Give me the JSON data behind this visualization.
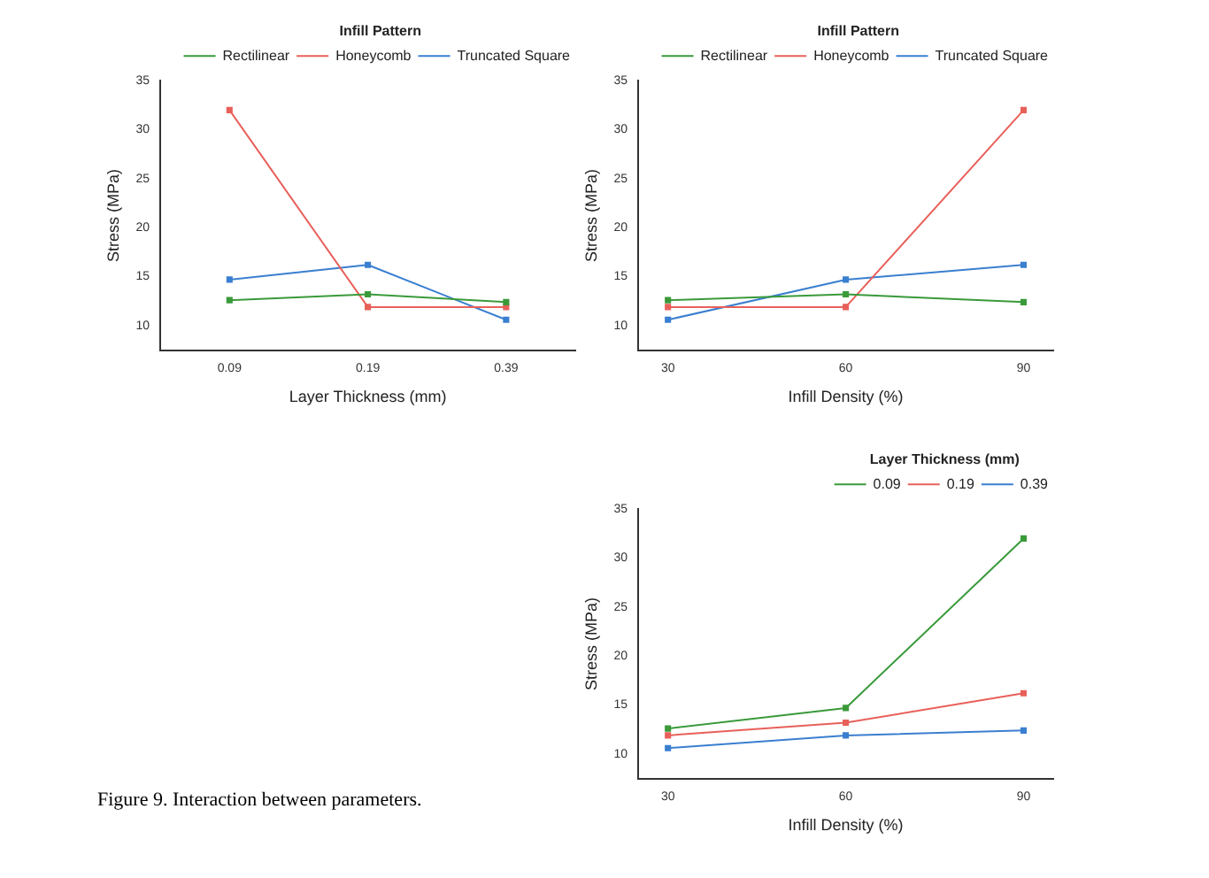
{
  "chart_data": [
    {
      "type": "line",
      "categories": [
        "0.09",
        "0.19",
        "0.39"
      ],
      "xlabel": "Layer Thickness (mm)",
      "ylabel": "Stress (MPa)",
      "ylim": [
        7.5,
        35
      ],
      "yticks": [
        10,
        15,
        20,
        25,
        30,
        35
      ],
      "legend": "top right",
      "legend_title": "Infill Pattern",
      "marker": "square",
      "grid": false,
      "series": [
        {
          "name": "Rectilinear",
          "color": "#3a9a3a",
          "values": [
            12.6,
            13.2,
            12.4
          ]
        },
        {
          "name": "Honeycomb",
          "color": "#e8605a",
          "values": [
            32,
            11.9,
            11.9
          ]
        },
        {
          "name": "Truncated Square",
          "color": "#3a7fd0",
          "values": [
            14.7,
            16.2,
            10.6
          ]
        }
      ]
    },
    {
      "type": "line",
      "x": [
        30,
        60,
        90
      ],
      "xlim": [
        25,
        95
      ],
      "xticks": [
        30,
        60,
        90
      ],
      "xlabel": "Infill Density (%)",
      "ylabel": "Stress (MPa)",
      "ylim": [
        7.5,
        35
      ],
      "yticks": [
        10,
        15,
        20,
        25,
        30,
        35
      ],
      "legend": "top right",
      "legend_title": "Infill Pattern",
      "marker": "square",
      "grid": false,
      "series": [
        {
          "name": "Rectilinear",
          "color": "#3a9a3a",
          "values": [
            12.6,
            13.2,
            12.4
          ]
        },
        {
          "name": "Honeycomb",
          "color": "#e8605a",
          "values": [
            11.9,
            11.9,
            32
          ]
        },
        {
          "name": "Truncated Square",
          "color": "#3a7fd0",
          "values": [
            10.6,
            14.7,
            16.2
          ]
        }
      ]
    },
    {
      "type": "line",
      "x": [
        30,
        60,
        90
      ],
      "xlim": [
        25,
        95
      ],
      "xticks": [
        30,
        60,
        90
      ],
      "xlabel": "Infill Density (%)",
      "ylabel": "Stress (MPa)",
      "ylim": [
        7.5,
        35
      ],
      "yticks": [
        10,
        15,
        20,
        25,
        30,
        35
      ],
      "legend": "top right",
      "legend_title": "Layer Thickness (mm)",
      "marker": "square",
      "grid": false,
      "annotations": [
        "Figure 9. Interaction between parameters."
      ],
      "series": [
        {
          "name": "0.09",
          "color": "#3a9a3a",
          "values": [
            12.6,
            14.7,
            32
          ]
        },
        {
          "name": "0.19",
          "color": "#e8605a",
          "values": [
            11.9,
            13.2,
            16.2
          ]
        },
        {
          "name": "0.39",
          "color": "#3a7fd0",
          "values": [
            10.6,
            11.9,
            12.4
          ]
        }
      ]
    }
  ]
}
